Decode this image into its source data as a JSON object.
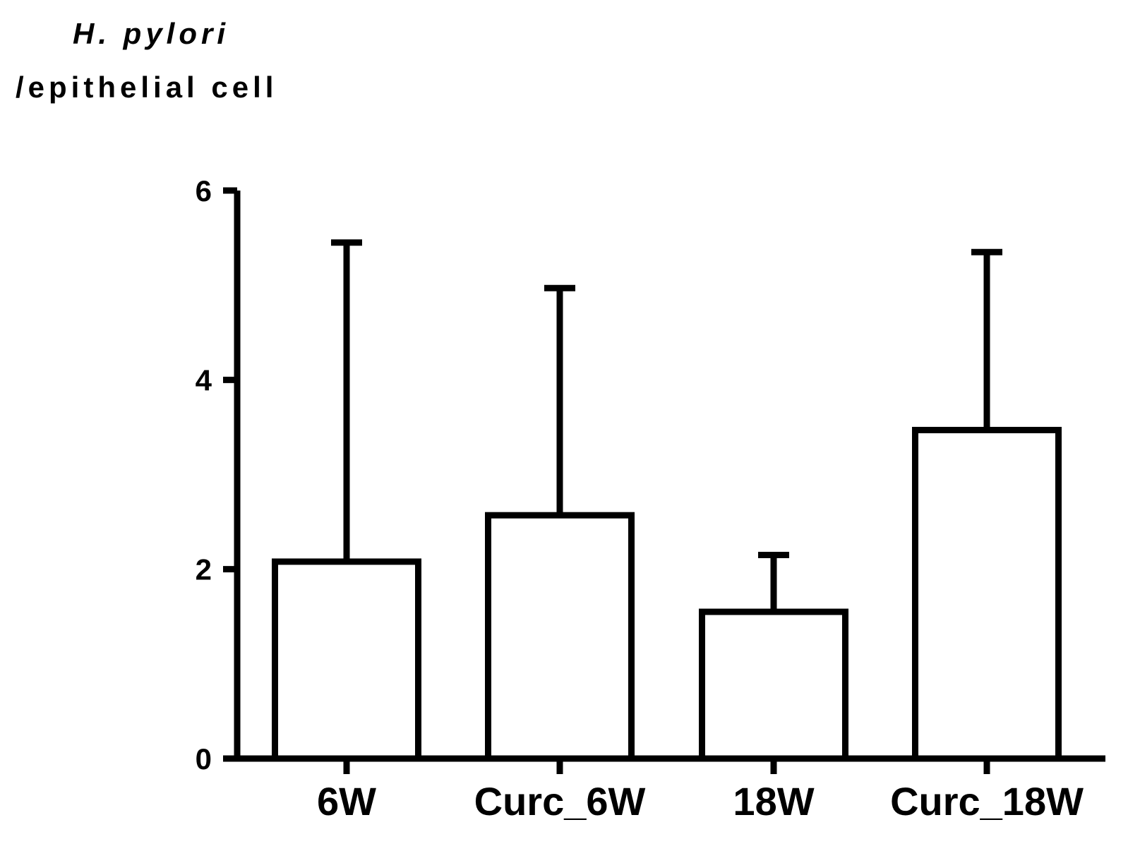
{
  "chart_data": {
    "type": "bar",
    "ylabel_line1": "H. pylori",
    "ylabel_line2": "/epithelial cell",
    "categories": [
      "6W",
      "Curc_6W",
      "18W",
      "Curc_18W"
    ],
    "values": [
      2.08,
      2.57,
      1.55,
      3.47
    ],
    "error_upper": [
      5.45,
      4.97,
      2.15,
      5.35
    ],
    "ylim": [
      0,
      6
    ],
    "yticks": [
      0,
      2,
      4,
      6
    ],
    "ytick_labels": [
      "0",
      "2",
      "4",
      "6"
    ],
    "grid": false,
    "legend": "none",
    "bar_fill": "#ffffff",
    "stroke_color": "#000000"
  }
}
